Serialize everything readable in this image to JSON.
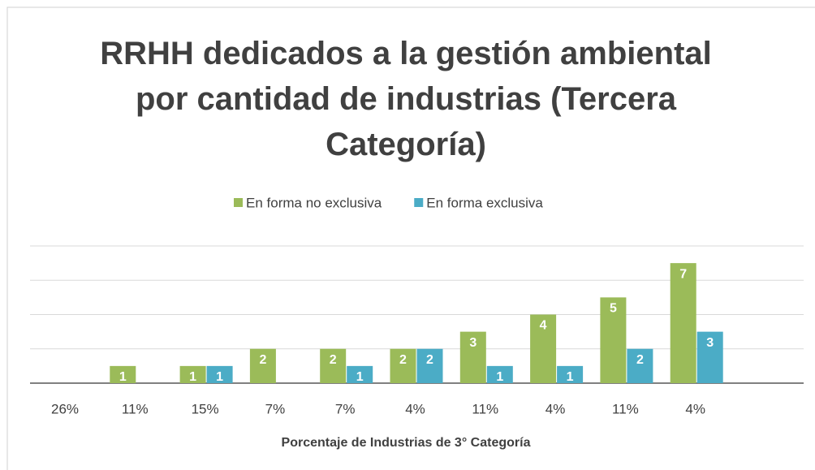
{
  "chart_data": {
    "type": "bar",
    "title": "RRHH dedicados a la gestión ambiental por cantidad de industrias (Tercera Categoría)",
    "x_label": "Porcentaje de Industrias de 3° Categoría",
    "categories": [
      "26%",
      "11%",
      "15%",
      "7%",
      "7%",
      "4%",
      "11%",
      "4%",
      "11%",
      "4%"
    ],
    "series": [
      {
        "name": "En forma no exclusiva",
        "color": "#9bbb59",
        "values": [
          null,
          1,
          1,
          2,
          2,
          2,
          3,
          4,
          5,
          7
        ]
      },
      {
        "name": "En forma exclusiva",
        "color": "#4bacc6",
        "values": [
          null,
          null,
          1,
          null,
          1,
          2,
          1,
          1,
          2,
          3
        ]
      }
    ],
    "ylim": [
      0,
      8
    ],
    "yticks": [
      0,
      2,
      4,
      6,
      8
    ],
    "grid": true,
    "legend": "top"
  }
}
